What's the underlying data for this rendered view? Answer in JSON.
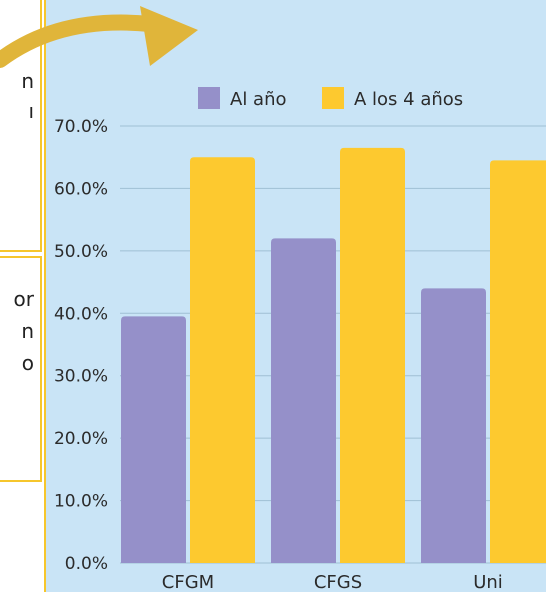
{
  "left_fragments": [
    "n",
    "ı",
    "or",
    "n",
    "o"
  ],
  "colors": {
    "panel_bg": "#c9e4f6",
    "series_1": "#9590c9",
    "series_2": "#fdc92f",
    "arrow": "#e0b53a",
    "border": "#f6c62c"
  },
  "chart_data": {
    "type": "bar",
    "categories": [
      "CFGM",
      "CFGS",
      "Uni"
    ],
    "series": [
      {
        "name": "Al año",
        "values": [
          39.5,
          52.0,
          44.0
        ]
      },
      {
        "name": "A los 4 años",
        "values": [
          65.0,
          66.5,
          64.5
        ]
      }
    ],
    "ylim": [
      0,
      70
    ],
    "yticks": [
      "0.0%",
      "10.0%",
      "20.0%",
      "30.0%",
      "40.0%",
      "50.0%",
      "60.0%",
      "70.0%"
    ],
    "grid": true,
    "legend_position": "top"
  }
}
